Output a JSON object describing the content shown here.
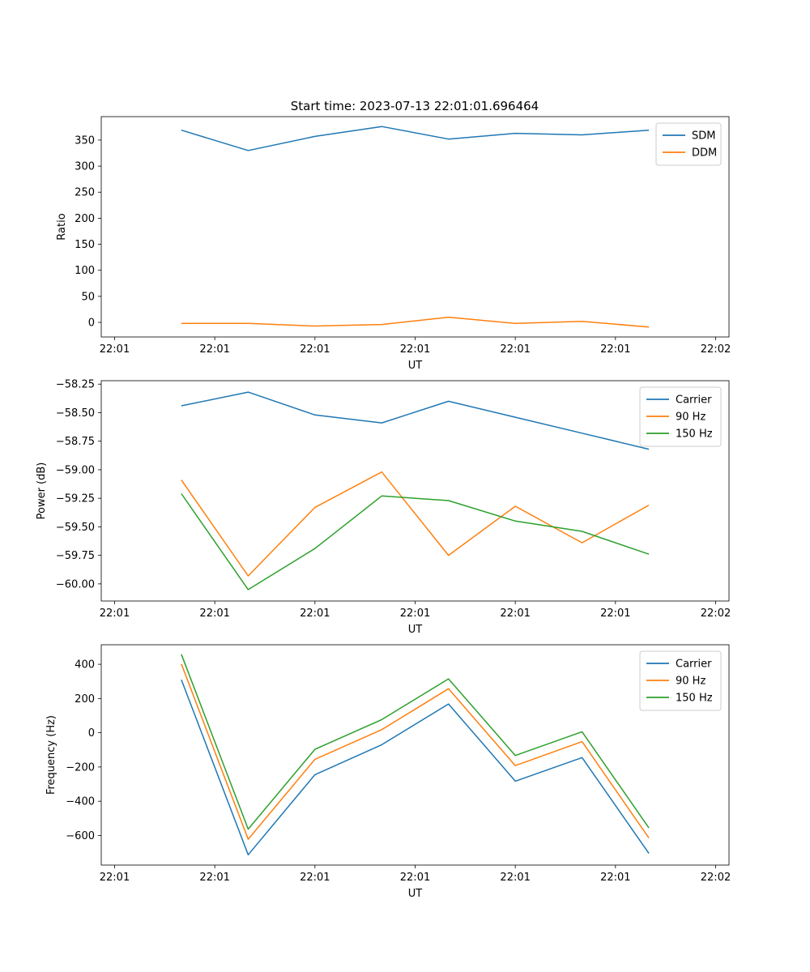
{
  "figure_title": "Start time: 2023-07-13 22:01:01.696464",
  "chart_data": [
    {
      "type": "line",
      "title": "Start time: 2023-07-13 22:01:01.696464",
      "xlabel": "UT",
      "ylabel": "Ratio",
      "x": [
        0.5,
        1.0,
        1.5,
        2.0,
        2.5,
        3.0,
        3.5,
        4.0
      ],
      "xlim": [
        -0.1,
        4.6
      ],
      "xticks": [
        0,
        0.75,
        1.5,
        2.25,
        3.0,
        3.75,
        4.5
      ],
      "xtick_labels": [
        "22:01",
        "22:01",
        "22:01",
        "22:01",
        "22:01",
        "22:01",
        "22:02"
      ],
      "ylim": [
        -28,
        395
      ],
      "yticks": [
        0,
        50,
        100,
        150,
        200,
        250,
        300,
        350
      ],
      "ytick_labels": [
        "0",
        "50",
        "100",
        "150",
        "200",
        "250",
        "300",
        "350"
      ],
      "legend_position": "top-right",
      "series": [
        {
          "name": "SDM",
          "color": "#1f77b4",
          "values": [
            369,
            330,
            357,
            376,
            352,
            363,
            360,
            369
          ]
        },
        {
          "name": "DDM",
          "color": "#ff7f0e",
          "values": [
            -2,
            -2,
            -7,
            -4,
            10,
            -2,
            2,
            -9
          ]
        }
      ]
    },
    {
      "type": "line",
      "title": "",
      "xlabel": "UT",
      "ylabel": "Power (dB)",
      "x": [
        0.5,
        1.0,
        1.5,
        2.0,
        2.5,
        3.0,
        3.5,
        4.0
      ],
      "xlim": [
        -0.1,
        4.6
      ],
      "xticks": [
        0,
        0.75,
        1.5,
        2.25,
        3.0,
        3.75,
        4.5
      ],
      "xtick_labels": [
        "22:01",
        "22:01",
        "22:01",
        "22:01",
        "22:01",
        "22:01",
        "22:02"
      ],
      "ylim": [
        -60.15,
        -58.22
      ],
      "yticks": [
        -60.0,
        -59.75,
        -59.5,
        -59.25,
        -59.0,
        -58.75,
        -58.5,
        -58.25
      ],
      "ytick_labels": [
        "−60.00",
        "−59.75",
        "−59.50",
        "−59.25",
        "−59.00",
        "−58.75",
        "−58.50",
        "−58.25"
      ],
      "legend_position": "top-right",
      "series": [
        {
          "name": "Carrier",
          "color": "#1f77b4",
          "values": [
            -58.44,
            -58.32,
            -58.52,
            -58.59,
            -58.4,
            -58.54,
            -58.68,
            -58.82
          ]
        },
        {
          "name": "90 Hz",
          "color": "#ff7f0e",
          "values": [
            -59.09,
            -59.93,
            -59.33,
            -59.02,
            -59.75,
            -59.32,
            -59.64,
            -59.31
          ]
        },
        {
          "name": "150 Hz",
          "color": "#2ca02c",
          "values": [
            -59.21,
            -60.05,
            -59.69,
            -59.23,
            -59.27,
            -59.45,
            -59.54,
            -59.74
          ]
        }
      ]
    },
    {
      "type": "line",
      "title": "",
      "xlabel": "UT",
      "ylabel": "Frequency (Hz)",
      "x": [
        0.5,
        1.0,
        1.5,
        2.0,
        2.5,
        3.0,
        3.5,
        4.0
      ],
      "xlim": [
        -0.1,
        4.6
      ],
      "xticks": [
        0,
        0.75,
        1.5,
        2.25,
        3.0,
        3.75,
        4.5
      ],
      "xtick_labels": [
        "22:01",
        "22:01",
        "22:01",
        "22:01",
        "22:01",
        "22:01",
        "22:02"
      ],
      "ylim": [
        -773,
        514
      ],
      "yticks": [
        -600,
        -400,
        -200,
        0,
        200,
        400
      ],
      "ytick_labels": [
        "−600",
        "−400",
        "−200",
        "0",
        "200",
        "400"
      ],
      "legend_position": "top-right",
      "series": [
        {
          "name": "Carrier",
          "color": "#1f77b4",
          "values": [
            310,
            -713,
            -245,
            -70,
            168,
            -283,
            -145,
            -705
          ]
        },
        {
          "name": "90 Hz",
          "color": "#ff7f0e",
          "values": [
            402,
            -622,
            -155,
            18,
            257,
            -192,
            -52,
            -615
          ]
        },
        {
          "name": "150 Hz",
          "color": "#2ca02c",
          "values": [
            458,
            -563,
            -97,
            77,
            315,
            -133,
            6,
            -556
          ]
        }
      ]
    }
  ]
}
